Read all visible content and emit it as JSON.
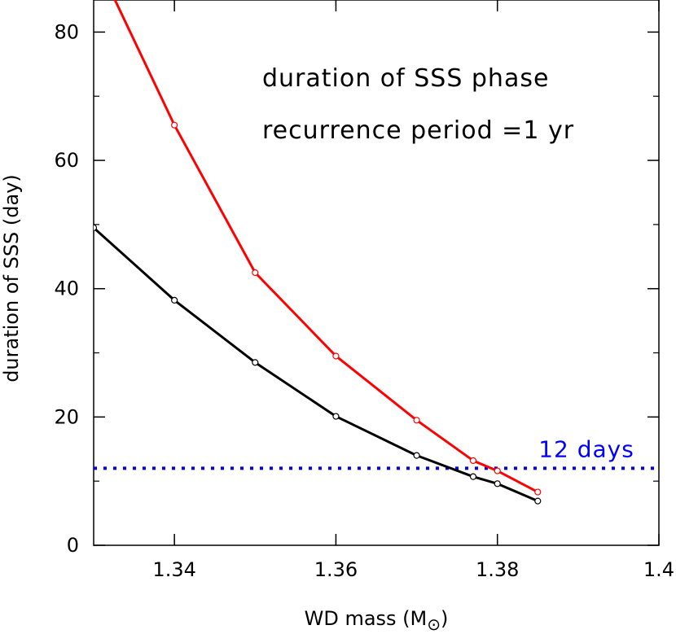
{
  "chart_data": {
    "type": "line",
    "title": "",
    "xlabel": "WD mass (M",
    "xlabel_symbol": "⊙",
    "xlabel_close": ")",
    "ylabel": "duration of SSS (day)",
    "xlim": [
      1.33,
      1.4
    ],
    "ylim": [
      0,
      85
    ],
    "x_ticks": [
      {
        "value": 1.34,
        "label": "1.34"
      },
      {
        "value": 1.36,
        "label": "1.36"
      },
      {
        "value": 1.38,
        "label": "1.38"
      },
      {
        "value": 1.4,
        "label": "1.4"
      }
    ],
    "y_ticks": [
      {
        "value": 0,
        "label": "0"
      },
      {
        "value": 20,
        "label": "20"
      },
      {
        "value": 40,
        "label": "40"
      },
      {
        "value": 60,
        "label": "60"
      },
      {
        "value": 80,
        "label": "80"
      }
    ],
    "annotations": [
      "duration of SSS phase",
      "recurrence period =1 yr"
    ],
    "reference_line": {
      "y": 12,
      "label": "12 days",
      "color": "#0000ff",
      "style": "dotted"
    },
    "series": [
      {
        "color": "#ff0000",
        "x": [
          1.33,
          1.34,
          1.35,
          1.36,
          1.37,
          1.377,
          1.38,
          1.385
        ],
        "y": [
          92,
          65.5,
          42.5,
          29.5,
          19.5,
          13.2,
          11.6,
          8.3
        ]
      },
      {
        "color": "#000000",
        "x": [
          1.33,
          1.34,
          1.35,
          1.36,
          1.37,
          1.377,
          1.38,
          1.385
        ],
        "y": [
          49.5,
          38.2,
          28.5,
          20.1,
          14.0,
          10.7,
          9.6,
          6.9
        ]
      }
    ]
  }
}
